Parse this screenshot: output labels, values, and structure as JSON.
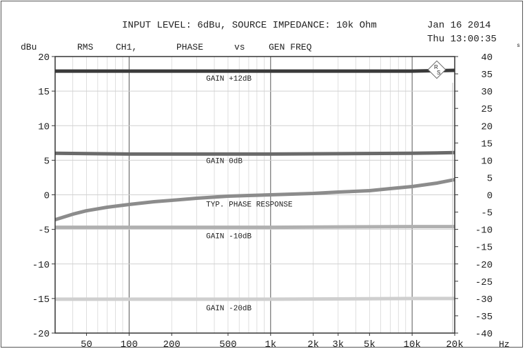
{
  "chart_data": {
    "type": "line",
    "header": {
      "title": "INPUT LEVEL: 6dBu, SOURCE IMPEDANCE: 10k Ohm",
      "date": "Jan 16 2014",
      "time": "Thu 13:00:35",
      "time_suffix": "s",
      "subtitle_parts": [
        "RMS",
        "CH1,",
        "PHASE",
        "vs",
        "GEN FREQ"
      ]
    },
    "ylabel_left": "dBu",
    "xlabel_unit": "Hz",
    "x_scale": "log",
    "xlim": [
      30,
      20000
    ],
    "ylim_left": [
      -20,
      20
    ],
    "ylim_right": [
      -40,
      40
    ],
    "x_ticks": [
      {
        "value": 50,
        "label": "50"
      },
      {
        "value": 100,
        "label": "100"
      },
      {
        "value": 200,
        "label": "200"
      },
      {
        "value": 500,
        "label": "500"
      },
      {
        "value": 1000,
        "label": "1k"
      },
      {
        "value": 2000,
        "label": "2k"
      },
      {
        "value": 3000,
        "label": "3k"
      },
      {
        "value": 5000,
        "label": "5k"
      },
      {
        "value": 10000,
        "label": "10k"
      },
      {
        "value": 20000,
        "label": "20k"
      }
    ],
    "y_left_ticks": [
      {
        "value": 20,
        "label": "20"
      },
      {
        "value": 15,
        "label": "15"
      },
      {
        "value": 10,
        "label": "10"
      },
      {
        "value": 5,
        "label": "5"
      },
      {
        "value": 0,
        "label": "0"
      },
      {
        "value": -5,
        "label": "-5"
      },
      {
        "value": -10,
        "label": "-10"
      },
      {
        "value": -15,
        "label": "-15"
      },
      {
        "value": -20,
        "label": "-20"
      }
    ],
    "y_right_ticks": [
      {
        "value": 40,
        "label": "40"
      },
      {
        "value": 35,
        "label": "35"
      },
      {
        "value": 30,
        "label": "30"
      },
      {
        "value": 25,
        "label": "25"
      },
      {
        "value": 20,
        "label": "20"
      },
      {
        "value": 15,
        "label": "15"
      },
      {
        "value": 10,
        "label": "10"
      },
      {
        "value": 5,
        "label": "5"
      },
      {
        "value": 0,
        "label": "0"
      },
      {
        "value": -5,
        "label": "-5"
      },
      {
        "value": -10,
        "label": "-10"
      },
      {
        "value": -15,
        "label": "-15"
      },
      {
        "value": -20,
        "label": "-20"
      },
      {
        "value": -25,
        "label": "-25"
      },
      {
        "value": -30,
        "label": "-30"
      },
      {
        "value": -35,
        "label": "-35"
      },
      {
        "value": -40,
        "label": "-40"
      }
    ],
    "grid": true,
    "series": [
      {
        "name": "GAIN +12dB",
        "axis": "left",
        "color": "#3a3a3a",
        "width": 5,
        "x": [
          30,
          100,
          1000,
          10000,
          20000
        ],
        "y": [
          17.9,
          17.9,
          17.9,
          17.9,
          18.0
        ],
        "label_x": 350,
        "label_y": 16.9
      },
      {
        "name": "GAIN 0dB",
        "axis": "left",
        "color": "#6a6a6a",
        "width": 5,
        "x": [
          30,
          100,
          1000,
          10000,
          20000
        ],
        "y": [
          6.0,
          5.9,
          5.9,
          6.0,
          6.1
        ],
        "label_x": 350,
        "label_y": 5.0
      },
      {
        "name": "TYP. PHASE RESPONSE",
        "axis": "left",
        "color": "#8c8c8c",
        "width": 5,
        "x": [
          30,
          40,
          50,
          70,
          100,
          150,
          200,
          300,
          500,
          700,
          1000,
          2000,
          3000,
          5000,
          7000,
          10000,
          15000,
          20000
        ],
        "y": [
          -3.6,
          -2.8,
          -2.3,
          -1.8,
          -1.4,
          -1.0,
          -0.8,
          -0.5,
          -0.2,
          -0.1,
          0.0,
          0.2,
          0.4,
          0.6,
          0.9,
          1.2,
          1.7,
          2.2
        ],
        "label_x": 350,
        "label_y": -1.3
      },
      {
        "name": "GAIN -10dB",
        "axis": "left",
        "color": "#b0b0b0",
        "width": 5,
        "x": [
          30,
          100,
          1000,
          10000,
          20000
        ],
        "y": [
          -4.7,
          -4.7,
          -4.7,
          -4.6,
          -4.6
        ],
        "label_x": 350,
        "label_y": -5.9
      },
      {
        "name": "GAIN -20dB",
        "axis": "left",
        "color": "#cfcfcf",
        "width": 5,
        "x": [
          30,
          100,
          1000,
          10000,
          20000
        ],
        "y": [
          -15.1,
          -15.1,
          -15.1,
          -15.0,
          -15.0
        ],
        "label_x": 350,
        "label_y": -16.3
      }
    ]
  }
}
